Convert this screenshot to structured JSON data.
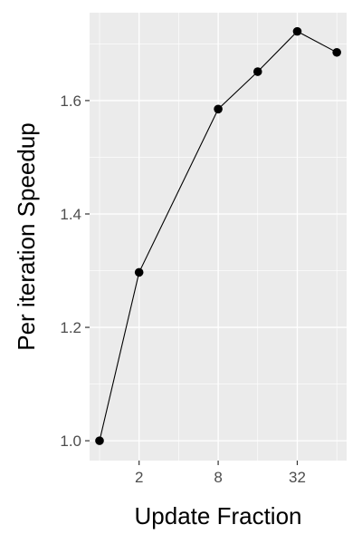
{
  "chart_data": {
    "type": "line",
    "xlabel": "Update Fraction",
    "ylabel": "Per iteration Speedup",
    "x_scale": "log2",
    "x": [
      1,
      2,
      8,
      16,
      32,
      64
    ],
    "x_ticks": [
      2,
      8,
      32
    ],
    "x_tick_labels": [
      "2",
      "8",
      "32"
    ],
    "y_ticks": [
      1.0,
      1.2,
      1.4,
      1.6
    ],
    "y_tick_labels": [
      "1.0",
      "1.2",
      "1.4",
      "1.6"
    ],
    "xlim": [
      0.84,
      76
    ],
    "ylim": [
      0.965,
      1.755
    ],
    "grid": true,
    "legend": "none",
    "series": [
      {
        "values": [
          1.0,
          1.297,
          1.585,
          1.651,
          1.722,
          1.685
        ]
      }
    ],
    "colors": {
      "panel": "#ebebeb",
      "grid_major": "#ffffff",
      "line": "#000000",
      "point": "#000000",
      "tick_mark": "#333333"
    }
  }
}
